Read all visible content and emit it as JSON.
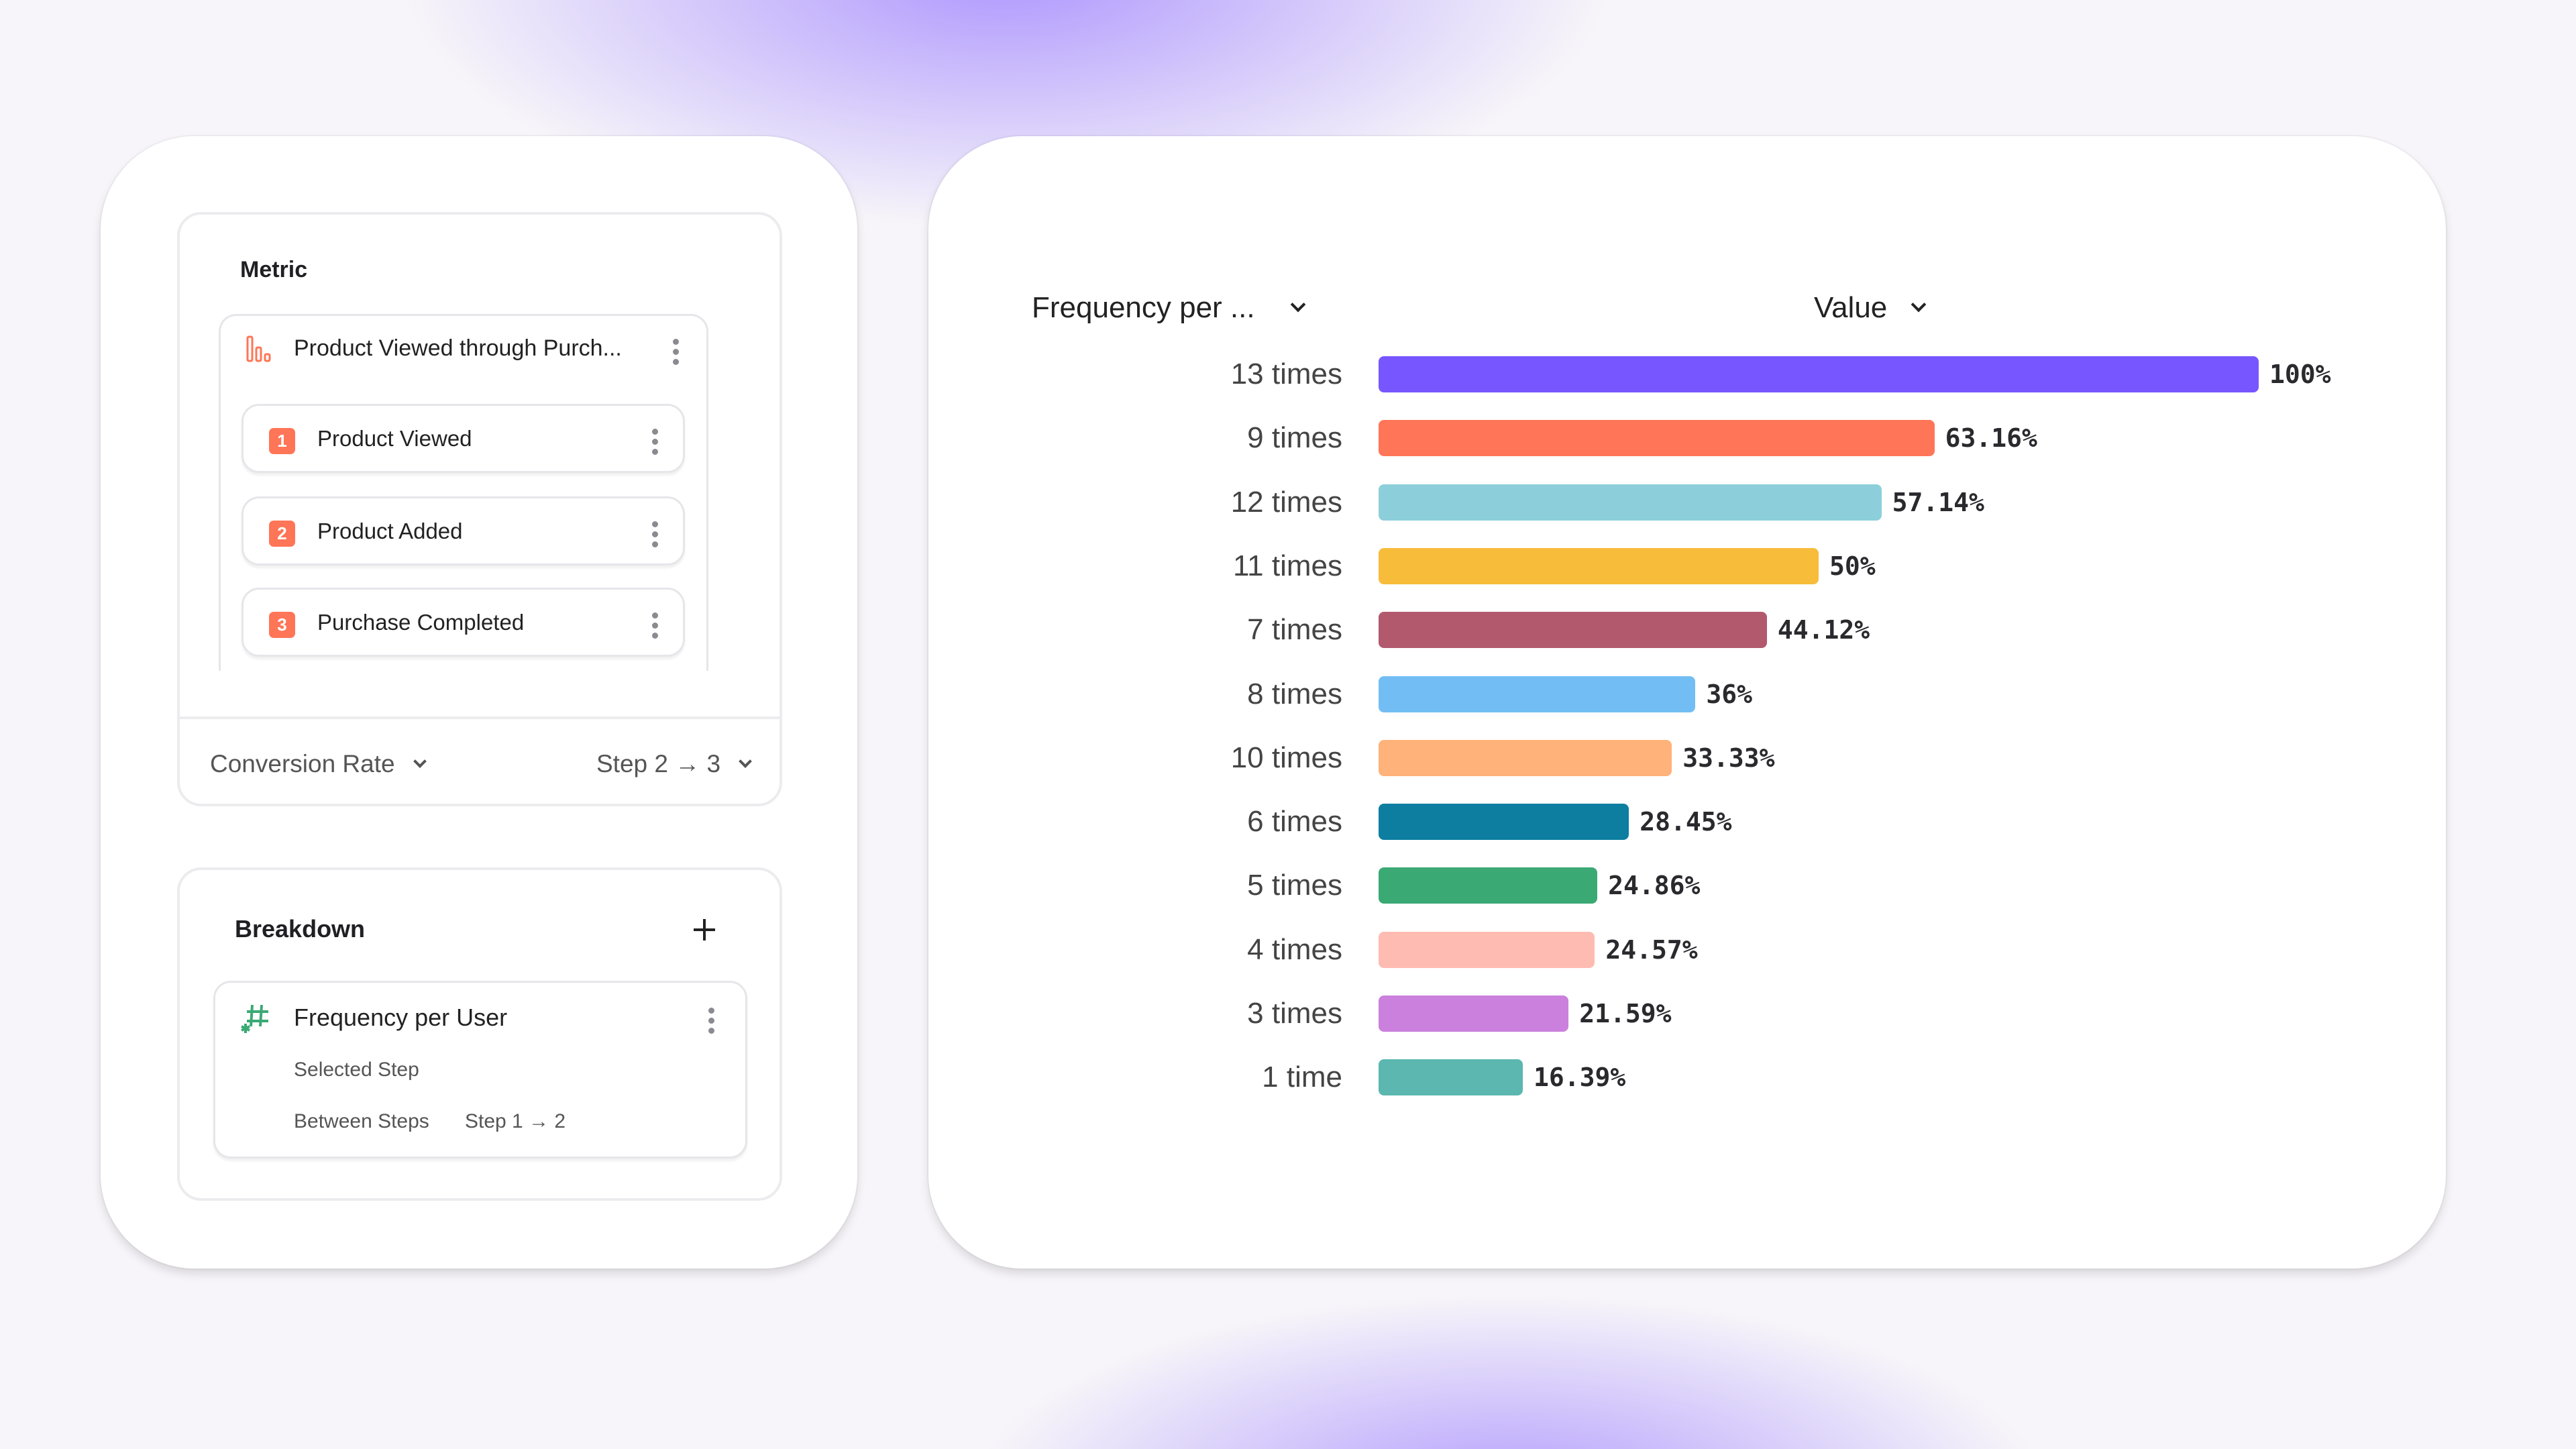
{
  "metric": {
    "title": "Metric",
    "funnel_name": "Product Viewed through Purch...",
    "funnel_icon": "funnel-bars-icon",
    "steps": [
      {
        "number": "1",
        "label": "Product Viewed"
      },
      {
        "number": "2",
        "label": "Product Added"
      },
      {
        "number": "3",
        "label": "Purchase Completed"
      }
    ],
    "measure": "Conversion Rate",
    "step_range": "Step 2 → 3"
  },
  "breakdown": {
    "title": "Breakdown",
    "add_icon": "plus-icon",
    "item": {
      "icon": "hash-icon",
      "label": "Frequency per User",
      "line1": "Selected Step",
      "line2_label": "Between Steps",
      "line2_value": "Step 1 → 2"
    }
  },
  "chart_data": {
    "type": "bar",
    "orientation": "horizontal",
    "category_header": "Frequency per ...",
    "value_header": "Value",
    "categories": [
      "13 times",
      "9 times",
      "12 times",
      "11 times",
      "7 times",
      "8 times",
      "10 times",
      "6 times",
      "5 times",
      "4 times",
      "3 times",
      "1 time"
    ],
    "values": [
      100,
      63.16,
      57.14,
      50,
      44.12,
      36,
      33.33,
      28.45,
      24.86,
      24.57,
      21.59,
      16.39
    ],
    "value_labels": [
      "100%",
      "63.16%",
      "57.14%",
      "50%",
      "44.12%",
      "36%",
      "33.33%",
      "28.45%",
      "24.86%",
      "24.57%",
      "21.59%",
      "16.39%"
    ],
    "colors": [
      "#7856ff",
      "#ff7557",
      "#8ccfdb",
      "#f8bc3b",
      "#b2596e",
      "#72bef4",
      "#ffb27a",
      "#0d7ea0",
      "#3ba974",
      "#febbb2",
      "#ca80dc",
      "#5bb7af"
    ],
    "xlim": [
      0,
      100
    ]
  }
}
